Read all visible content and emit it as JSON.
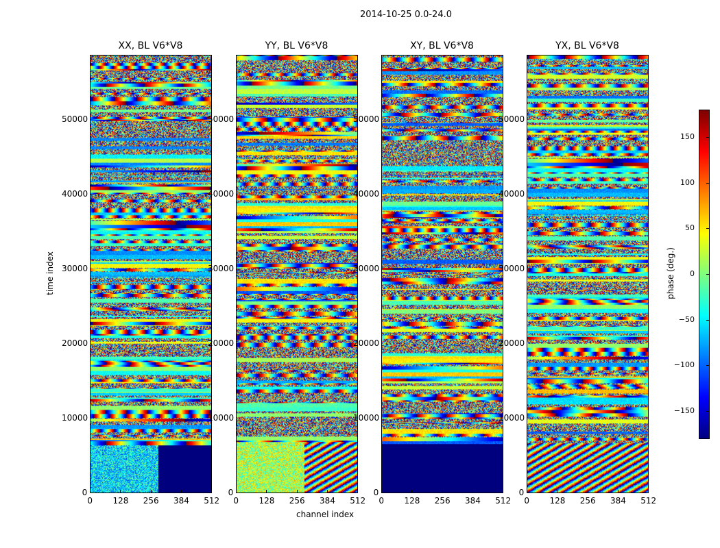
{
  "figure_title": "2014-10-25 0.0-24.0",
  "chart_data": {
    "type": "heatmap",
    "title": "2014-10-25 0.0-24.0",
    "xlabel": "channel index",
    "ylabel": "time index",
    "panels": [
      {
        "title": "XX, BL V6*V8"
      },
      {
        "title": "YY, BL V6*V8"
      },
      {
        "title": "XY, BL V6*V8"
      },
      {
        "title": "YX, BL V6*V8"
      }
    ],
    "xlim": [
      0,
      512
    ],
    "ylim": [
      0,
      58700
    ],
    "xticks": [
      "0",
      "128",
      "256",
      "384",
      "512"
    ],
    "yticks": [
      "0",
      "10000",
      "20000",
      "30000",
      "40000",
      "50000"
    ],
    "colormap": "jet",
    "colorbar": {
      "label": "phase (deg.)",
      "range": [
        -180,
        180
      ],
      "ticks": [
        "150",
        "100",
        "50",
        "0",
        "−50",
        "−100",
        "−150"
      ],
      "tick_values": [
        150,
        100,
        50,
        0,
        -50,
        -100,
        -150
      ]
    }
  }
}
